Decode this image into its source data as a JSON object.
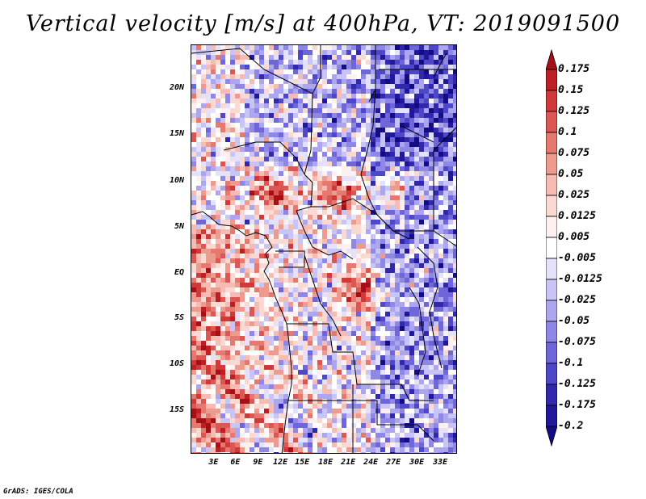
{
  "title": "Vertical velocity [m/s] at 400hPa, VT: 2019091500",
  "map": {
    "lat_labels": [
      "20N",
      "15N",
      "10N",
      "5N",
      "EQ",
      "5S",
      "10S",
      "15S"
    ],
    "lon_labels": [
      "3E",
      "6E",
      "9E",
      "12E",
      "15E",
      "18E",
      "21E",
      "24E",
      "27E",
      "30E",
      "33E"
    ]
  },
  "colorbar": {
    "levels": [
      "0.175",
      "0.15",
      "0.125",
      "0.1",
      "0.075",
      "0.05",
      "0.025",
      "0.0125",
      "0.005",
      "-0.005",
      "-0.0125",
      "-0.025",
      "-0.05",
      "-0.075",
      "-0.1",
      "-0.125",
      "-0.175",
      "-0.2"
    ],
    "colors": [
      "#a50f15",
      "#bd1f24",
      "#d0383a",
      "#dc5754",
      "#e6796f",
      "#ef9a8f",
      "#f6bbb2",
      "#fbd9d3",
      "#fdf0ee",
      "#ffffff",
      "#e4e2fa",
      "#c8c4f5",
      "#aca6ef",
      "#8f87e6",
      "#6e66d9",
      "#4e47c7",
      "#3128ae",
      "#20179a",
      "#130c85"
    ]
  },
  "footer": "GrADS: IGES/COLA"
}
